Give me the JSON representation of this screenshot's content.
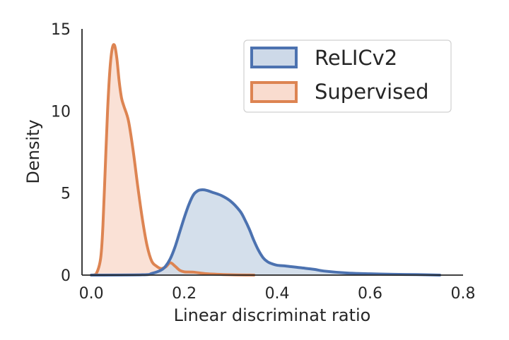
{
  "chart_data": {
    "type": "area",
    "title": "",
    "xlabel": "Linear discriminat ratio",
    "ylabel": "Density",
    "xlim": [
      -0.02,
      0.8
    ],
    "ylim": [
      0,
      15
    ],
    "xticks": [
      "0.0",
      "0.2",
      "0.4",
      "0.6",
      "0.8"
    ],
    "yticks": [
      "0",
      "5",
      "10",
      "15"
    ],
    "grid": false,
    "legend_position": "top-right",
    "series": [
      {
        "name": "ReLICv2",
        "line_color": "#4c72b0",
        "fill_color": "#cdd9e8",
        "x": [
          0.0,
          0.11,
          0.13,
          0.15,
          0.16,
          0.17,
          0.18,
          0.19,
          0.2,
          0.21,
          0.22,
          0.23,
          0.24,
          0.25,
          0.26,
          0.28,
          0.3,
          0.32,
          0.33,
          0.34,
          0.35,
          0.36,
          0.37,
          0.38,
          0.39,
          0.4,
          0.42,
          0.45,
          0.48,
          0.5,
          0.55,
          0.6,
          0.65,
          0.7,
          0.75
        ],
        "y": [
          0.0,
          0.02,
          0.1,
          0.3,
          0.55,
          1.0,
          1.7,
          2.6,
          3.5,
          4.3,
          4.9,
          5.15,
          5.2,
          5.15,
          5.05,
          4.85,
          4.5,
          3.9,
          3.4,
          2.8,
          2.1,
          1.5,
          1.05,
          0.8,
          0.68,
          0.6,
          0.55,
          0.45,
          0.35,
          0.25,
          0.13,
          0.08,
          0.05,
          0.03,
          0.0
        ]
      },
      {
        "name": "Supervised",
        "line_color": "#dd8452",
        "fill_color": "#f9dccf",
        "x": [
          0.0,
          0.01,
          0.02,
          0.025,
          0.03,
          0.035,
          0.04,
          0.045,
          0.05,
          0.055,
          0.06,
          0.065,
          0.07,
          0.08,
          0.09,
          0.1,
          0.11,
          0.12,
          0.13,
          0.14,
          0.15,
          0.16,
          0.17,
          0.18,
          0.19,
          0.2,
          0.22,
          0.25,
          0.3,
          0.35
        ],
        "y": [
          0.0,
          0.05,
          1.0,
          3.0,
          6.5,
          10.0,
          12.5,
          13.8,
          14.0,
          13.2,
          11.8,
          10.8,
          10.3,
          9.4,
          7.6,
          5.4,
          3.4,
          1.8,
          0.85,
          0.55,
          0.4,
          0.5,
          0.75,
          0.55,
          0.3,
          0.2,
          0.18,
          0.08,
          0.02,
          0.0
        ]
      }
    ]
  }
}
